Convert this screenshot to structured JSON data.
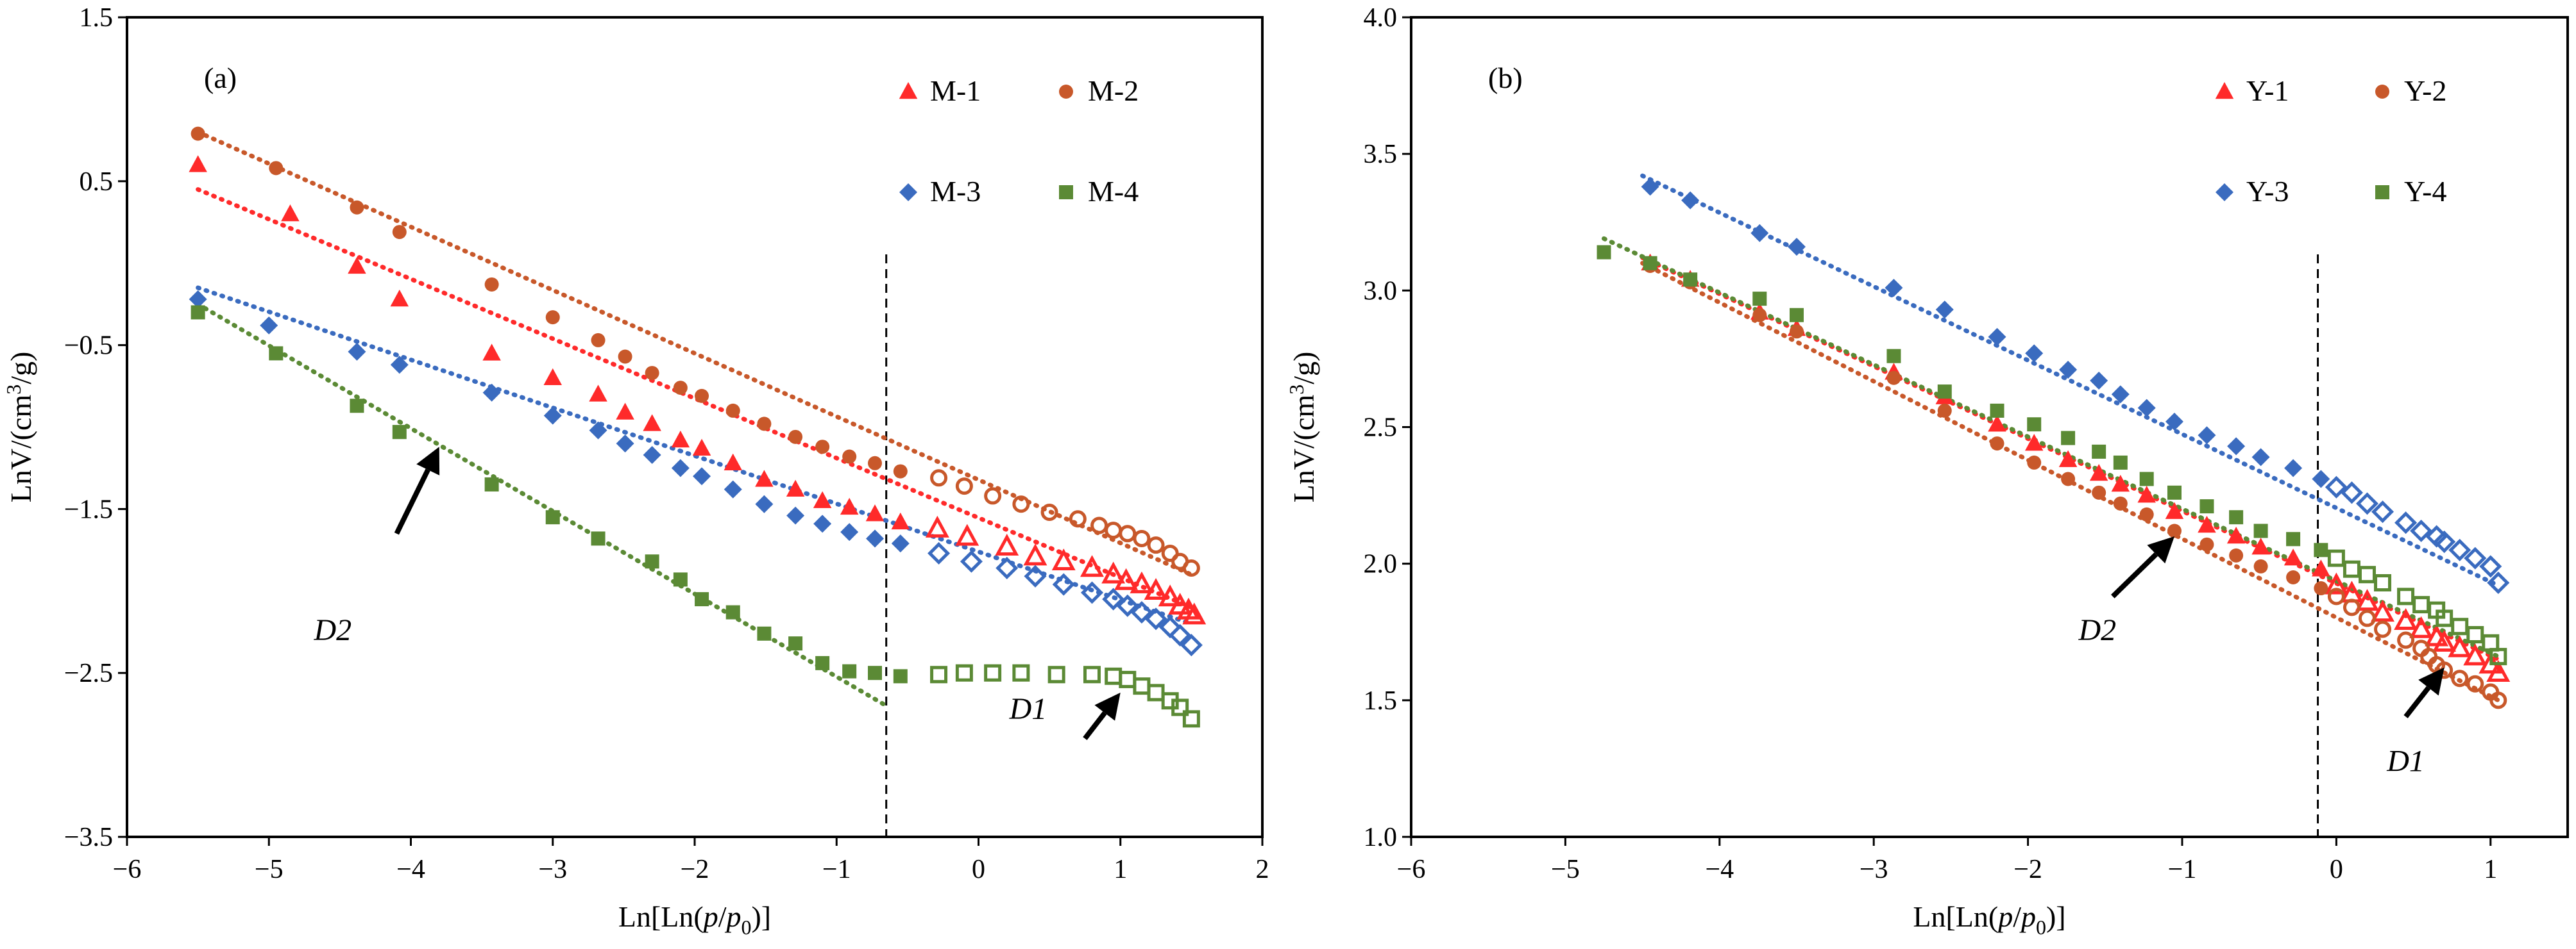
{
  "chart_data": [
    {
      "type": "scatter",
      "panel_label": "(a)",
      "xlabel": "Ln[Ln(p/p0)]",
      "xlabel_parts": {
        "a": "Ln[Ln(",
        "p": "p",
        "slash": "/",
        "p0": "p",
        "sub": "0",
        "b": ")]"
      },
      "ylabel": "LnV/(cm³/g)",
      "ylabel_parts": {
        "a": "LnV/(cm",
        "sup": "3",
        "b": "/g)"
      },
      "xlim": [
        -6,
        2
      ],
      "ylim": [
        -3.5,
        1.5
      ],
      "xticks": [
        -6,
        -5,
        -4,
        -3,
        -2,
        -1,
        0,
        1,
        2
      ],
      "xtick_labels": [
        "−6",
        "−5",
        "−4",
        "−3",
        "−2",
        "−1",
        "0",
        "1",
        "2"
      ],
      "yticks": [
        -3.5,
        -2.5,
        -1.5,
        -0.5,
        0.5,
        1.5
      ],
      "ytick_labels": [
        "−3.5",
        "−2.5",
        "−1.5",
        "−0.5",
        "0.5",
        "1.5"
      ],
      "divider_x": -0.65,
      "legend_position": "top-right",
      "annotations": [
        {
          "text": "D2",
          "at": [
            -4.55,
            -2.3
          ],
          "arrow_from": [
            -4.1,
            -1.65
          ],
          "arrow_to": [
            -3.8,
            -1.12
          ]
        },
        {
          "text": "D1",
          "at": [
            0.35,
            -2.78
          ],
          "arrow_from": [
            0.75,
            -2.9
          ],
          "arrow_to": [
            1.0,
            -2.62
          ]
        }
      ],
      "series": [
        {
          "name": "M-1",
          "marker": "triangle",
          "color": "#ff2a2a",
          "x": [
            -5.5,
            -4.85,
            -4.38,
            -4.08,
            -3.43,
            -3.0,
            -2.68,
            -2.49,
            -2.3,
            -2.1,
            -1.95,
            -1.73,
            -1.51,
            -1.29,
            -1.1,
            -0.91,
            -0.73,
            -0.55,
            -0.29,
            -0.08,
            0.2,
            0.4,
            0.6,
            0.8,
            0.95,
            1.04,
            1.15,
            1.25,
            1.35,
            1.42,
            1.48,
            1.52
          ],
          "y": [
            0.6,
            0.3,
            -0.02,
            -0.22,
            -0.55,
            -0.7,
            -0.8,
            -0.91,
            -0.98,
            -1.08,
            -1.13,
            -1.22,
            -1.32,
            -1.38,
            -1.45,
            -1.49,
            -1.53,
            -1.58,
            -1.62,
            -1.67,
            -1.73,
            -1.79,
            -1.82,
            -1.86,
            -1.9,
            -1.94,
            -1.96,
            -2.0,
            -2.04,
            -2.09,
            -2.12,
            -2.15
          ],
          "hollow_from_index": 18
        },
        {
          "name": "M-2",
          "marker": "circle",
          "color": "#c8582a",
          "x": [
            -5.5,
            -4.95,
            -4.38,
            -4.08,
            -3.43,
            -3.0,
            -2.68,
            -2.49,
            -2.3,
            -2.1,
            -1.95,
            -1.73,
            -1.51,
            -1.29,
            -1.1,
            -0.91,
            -0.73,
            -0.55,
            -0.28,
            -0.1,
            0.1,
            0.3,
            0.5,
            0.7,
            0.85,
            0.95,
            1.05,
            1.15,
            1.25,
            1.35,
            1.42,
            1.5
          ],
          "y": [
            0.79,
            0.58,
            0.34,
            0.19,
            -0.13,
            -0.33,
            -0.47,
            -0.57,
            -0.67,
            -0.76,
            -0.81,
            -0.9,
            -0.98,
            -1.06,
            -1.12,
            -1.18,
            -1.22,
            -1.27,
            -1.31,
            -1.36,
            -1.42,
            -1.47,
            -1.52,
            -1.56,
            -1.6,
            -1.63,
            -1.65,
            -1.68,
            -1.72,
            -1.77,
            -1.82,
            -1.86
          ],
          "hollow_from_index": 18
        },
        {
          "name": "M-3",
          "marker": "diamond",
          "color": "#3a6bbf",
          "x": [
            -5.5,
            -5.0,
            -4.38,
            -4.08,
            -3.43,
            -3.0,
            -2.68,
            -2.49,
            -2.3,
            -2.1,
            -1.95,
            -1.73,
            -1.51,
            -1.29,
            -1.1,
            -0.91,
            -0.73,
            -0.55,
            -0.28,
            -0.05,
            0.2,
            0.4,
            0.6,
            0.8,
            0.95,
            1.05,
            1.15,
            1.25,
            1.35,
            1.42,
            1.5
          ],
          "y": [
            -0.22,
            -0.38,
            -0.54,
            -0.62,
            -0.79,
            -0.93,
            -1.02,
            -1.1,
            -1.17,
            -1.25,
            -1.3,
            -1.38,
            -1.47,
            -1.54,
            -1.59,
            -1.64,
            -1.68,
            -1.71,
            -1.77,
            -1.82,
            -1.86,
            -1.91,
            -1.96,
            -2.01,
            -2.05,
            -2.09,
            -2.13,
            -2.17,
            -2.22,
            -2.27,
            -2.33
          ],
          "hollow_from_index": 18
        },
        {
          "name": "M-4",
          "marker": "square",
          "color": "#5b8a35",
          "x": [
            -5.5,
            -4.95,
            -4.38,
            -4.08,
            -3.43,
            -3.0,
            -2.68,
            -2.3,
            -2.1,
            -1.95,
            -1.73,
            -1.51,
            -1.29,
            -1.1,
            -0.91,
            -0.73,
            -0.55,
            -0.28,
            -0.1,
            0.1,
            0.3,
            0.55,
            0.8,
            0.95,
            1.05,
            1.15,
            1.25,
            1.35,
            1.42,
            1.5
          ],
          "y": [
            -0.3,
            -0.55,
            -0.87,
            -1.03,
            -1.35,
            -1.55,
            -1.68,
            -1.82,
            -1.93,
            -2.05,
            -2.13,
            -2.26,
            -2.32,
            -2.44,
            -2.49,
            -2.5,
            -2.52,
            -2.51,
            -2.5,
            -2.5,
            -2.5,
            -2.51,
            -2.51,
            -2.52,
            -2.54,
            -2.58,
            -2.62,
            -2.67,
            -2.71,
            -2.78
          ],
          "hollow_from_index": 17
        }
      ],
      "fit_lines": [
        {
          "color": "#ff2a2a",
          "x": [
            -5.5,
            1.5
          ],
          "y": [
            0.45,
            -2.1
          ]
        },
        {
          "color": "#c8582a",
          "x": [
            -5.5,
            1.5
          ],
          "y": [
            0.8,
            -1.9
          ]
        },
        {
          "color": "#3a6bbf",
          "x": [
            -5.5,
            1.5
          ],
          "y": [
            -0.15,
            -2.2
          ]
        },
        {
          "color": "#5b8a35",
          "x": [
            -5.5,
            -0.65
          ],
          "y": [
            -0.25,
            -2.7
          ]
        }
      ]
    },
    {
      "type": "scatter",
      "panel_label": "(b)",
      "xlabel": "Ln[Ln(p/p0)]",
      "xlabel_parts": {
        "a": "Ln[Ln(",
        "p": "p",
        "slash": "/",
        "p0": "p",
        "sub": "0",
        "b": ")]"
      },
      "ylabel": "LnV/(cm³/g)",
      "ylabel_parts": {
        "a": "LnV/(cm",
        "sup": "3",
        "b": "/g)"
      },
      "xlim": [
        -6,
        1.5
      ],
      "ylim": [
        1.0,
        4.0
      ],
      "xticks": [
        -6,
        -5,
        -4,
        -3,
        -2,
        -1,
        0,
        1
      ],
      "xtick_labels": [
        "−6",
        "−5",
        "−4",
        "−3",
        "−2",
        "−1",
        "0",
        "1"
      ],
      "yticks": [
        1.0,
        1.5,
        2.0,
        2.5,
        3.0,
        3.5,
        4.0
      ],
      "ytick_labels": [
        "1.0",
        "1.5",
        "2.0",
        "2.5",
        "3.0",
        "3.5",
        "4.0"
      ],
      "divider_x": -0.12,
      "legend_position": "top-right",
      "annotations": [
        {
          "text": "D2",
          "at": [
            -1.55,
            1.72
          ],
          "arrow_from": [
            -1.45,
            1.88
          ],
          "arrow_to": [
            -1.05,
            2.1
          ]
        },
        {
          "text": "D1",
          "at": [
            0.45,
            1.24
          ],
          "arrow_from": [
            0.45,
            1.44
          ],
          "arrow_to": [
            0.7,
            1.62
          ]
        }
      ],
      "series": [
        {
          "name": "Y-1",
          "marker": "triangle",
          "color": "#ff2a2a",
          "x": [
            -4.45,
            -4.19,
            -3.74,
            -3.5,
            -2.87,
            -2.54,
            -2.2,
            -1.96,
            -1.74,
            -1.54,
            -1.4,
            -1.23,
            -1.05,
            -0.84,
            -0.65,
            -0.49,
            -0.28,
            -0.1,
            0.0,
            0.1,
            0.2,
            0.3,
            0.45,
            0.55,
            0.65,
            0.7,
            0.8,
            0.9,
            1.0,
            1.05
          ],
          "y": [
            3.1,
            3.04,
            2.92,
            2.86,
            2.7,
            2.61,
            2.51,
            2.44,
            2.38,
            2.33,
            2.29,
            2.25,
            2.19,
            2.14,
            2.1,
            2.06,
            2.02,
            1.98,
            1.92,
            1.89,
            1.86,
            1.82,
            1.79,
            1.76,
            1.73,
            1.71,
            1.69,
            1.66,
            1.63,
            1.6
          ],
          "hollow_from_index": 18
        },
        {
          "name": "Y-2",
          "marker": "circle",
          "color": "#c8582a",
          "x": [
            -4.45,
            -4.19,
            -3.74,
            -3.5,
            -2.87,
            -2.54,
            -2.2,
            -1.96,
            -1.74,
            -1.54,
            -1.4,
            -1.23,
            -1.05,
            -0.84,
            -0.65,
            -0.49,
            -0.28,
            -0.1,
            0.0,
            0.1,
            0.2,
            0.3,
            0.45,
            0.55,
            0.6,
            0.65,
            0.7,
            0.8,
            0.9,
            1.0,
            1.05
          ],
          "y": [
            3.09,
            3.03,
            2.91,
            2.85,
            2.68,
            2.56,
            2.44,
            2.37,
            2.31,
            2.26,
            2.22,
            2.18,
            2.12,
            2.07,
            2.03,
            1.99,
            1.95,
            1.91,
            1.88,
            1.84,
            1.8,
            1.76,
            1.72,
            1.69,
            1.66,
            1.63,
            1.61,
            1.58,
            1.56,
            1.53,
            1.5
          ],
          "hollow_from_index": 18
        },
        {
          "name": "Y-3",
          "marker": "diamond",
          "color": "#3a6bbf",
          "x": [
            -4.45,
            -4.19,
            -3.74,
            -3.5,
            -2.87,
            -2.54,
            -2.2,
            -1.96,
            -1.74,
            -1.54,
            -1.4,
            -1.23,
            -1.05,
            -0.84,
            -0.65,
            -0.49,
            -0.28,
            -0.1,
            0.0,
            0.1,
            0.2,
            0.3,
            0.45,
            0.55,
            0.65,
            0.7,
            0.8,
            0.9,
            1.0,
            1.05
          ],
          "y": [
            3.38,
            3.33,
            3.21,
            3.16,
            3.01,
            2.93,
            2.83,
            2.77,
            2.71,
            2.67,
            2.62,
            2.57,
            2.52,
            2.47,
            2.43,
            2.39,
            2.35,
            2.31,
            2.28,
            2.26,
            2.22,
            2.19,
            2.15,
            2.12,
            2.1,
            2.08,
            2.05,
            2.02,
            1.99,
            1.93
          ],
          "hollow_from_index": 18
        },
        {
          "name": "Y-4",
          "marker": "square",
          "color": "#5b8a35",
          "x": [
            -4.75,
            -4.45,
            -4.19,
            -3.74,
            -3.5,
            -2.87,
            -2.54,
            -2.2,
            -1.96,
            -1.74,
            -1.54,
            -1.4,
            -1.23,
            -1.05,
            -0.84,
            -0.65,
            -0.49,
            -0.28,
            -0.1,
            0.0,
            0.1,
            0.2,
            0.3,
            0.45,
            0.55,
            0.65,
            0.7,
            0.8,
            0.9,
            1.0,
            1.05
          ],
          "y": [
            3.14,
            3.1,
            3.04,
            2.97,
            2.91,
            2.76,
            2.63,
            2.56,
            2.51,
            2.46,
            2.41,
            2.37,
            2.31,
            2.26,
            2.21,
            2.17,
            2.12,
            2.09,
            2.05,
            2.02,
            1.98,
            1.96,
            1.93,
            1.88,
            1.85,
            1.83,
            1.8,
            1.77,
            1.74,
            1.71,
            1.66
          ],
          "hollow_from_index": 19
        }
      ],
      "fit_lines": [
        {
          "color": "#ff2a2a",
          "x": [
            -4.5,
            1.05
          ],
          "y": [
            3.12,
            1.65
          ]
        },
        {
          "color": "#c8582a",
          "x": [
            -4.5,
            1.05
          ],
          "y": [
            3.1,
            1.5
          ]
        },
        {
          "color": "#3a6bbf",
          "x": [
            -4.5,
            1.05
          ],
          "y": [
            3.42,
            1.92
          ]
        },
        {
          "color": "#5b8a35",
          "x": [
            -4.75,
            1.05
          ],
          "y": [
            3.19,
            1.66
          ]
        }
      ]
    }
  ]
}
